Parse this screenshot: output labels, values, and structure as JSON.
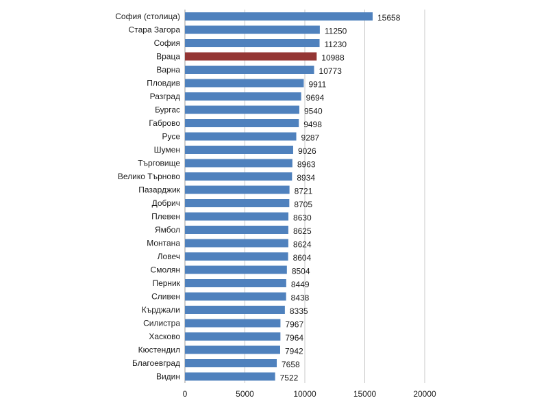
{
  "chart_data": {
    "type": "bar",
    "orientation": "horizontal",
    "categories": [
      "София (столица)",
      "Стара Загора",
      "София",
      "Враца",
      "Варна",
      "Пловдив",
      "Разград",
      "Бургас",
      "Габрово",
      "Русе",
      "Шумен",
      "Търговище",
      "Велико Търново",
      "Пазарджик",
      "Добрич",
      "Плевен",
      "Ямбол",
      "Монтана",
      "Ловеч",
      "Смолян",
      "Перник",
      "Сливен",
      "Кърджали",
      "Силистра",
      "Хасково",
      "Кюстендил",
      "Благоевград",
      "Видин"
    ],
    "values": [
      15658,
      11250,
      11230,
      10988,
      10773,
      9911,
      9694,
      9540,
      9498,
      9287,
      9026,
      8963,
      8934,
      8721,
      8705,
      8630,
      8625,
      8624,
      8604,
      8504,
      8449,
      8438,
      8335,
      7967,
      7964,
      7942,
      7658,
      7522
    ],
    "highlight_category": "Враца",
    "xlim": [
      0,
      20000
    ],
    "xticks": [
      "0",
      "5000",
      "10000",
      "15000",
      "20000"
    ],
    "grid": true,
    "title": "",
    "xlabel": "",
    "ylabel": "",
    "colors": {
      "bar": "#4f81bd",
      "highlight": "#943634",
      "grid": "#c8c8c8"
    }
  }
}
